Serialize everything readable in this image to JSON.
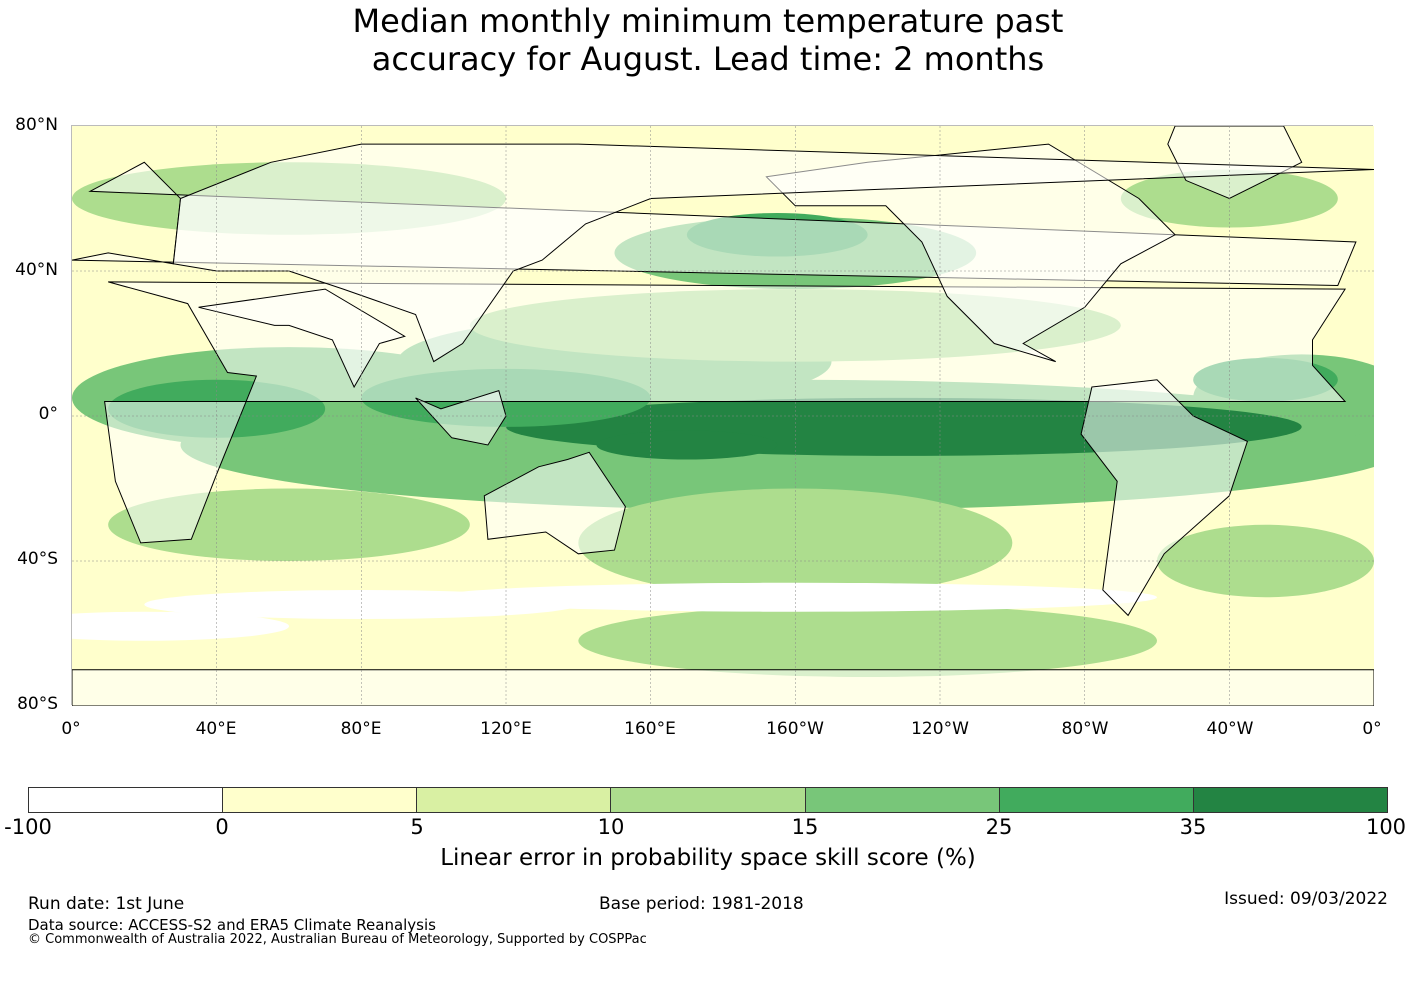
{
  "title_line1": "Median monthly minimum temperature past",
  "title_line2": "accuracy for August. Lead time: 2 months",
  "map": {
    "lat_labels": [
      "80°N",
      "40°N",
      "0°",
      "40°S",
      "80°S"
    ],
    "lon_labels": [
      "0°",
      "40°E",
      "80°E",
      "120°E",
      "160°E",
      "160°W",
      "120°W",
      "80°W",
      "40°W",
      "0°"
    ],
    "grid": true,
    "land_color": "#ffffff",
    "coastline_color": "#000000"
  },
  "colorbar": {
    "ticks": [
      "-100",
      "0",
      "5",
      "10",
      "15",
      "25",
      "35",
      "100"
    ],
    "colors": [
      "#ffffff",
      "#ffffcc",
      "#d9f0a3",
      "#addd8e",
      "#78c679",
      "#41ab5d",
      "#238443"
    ],
    "label": "Linear error in probability space skill score (%)"
  },
  "footer": {
    "run_date": "Run date: 1st June",
    "base_period": "Base period: 1981-2018",
    "issued": "Issued: 09/03/2022",
    "source": "Data source: ACCESS-S2 and ERA5 Climate Reanalysis",
    "copyright": "© Commonwealth of Australia 2022, Australian Bureau of Meteorology, Supported by COSPPac"
  }
}
